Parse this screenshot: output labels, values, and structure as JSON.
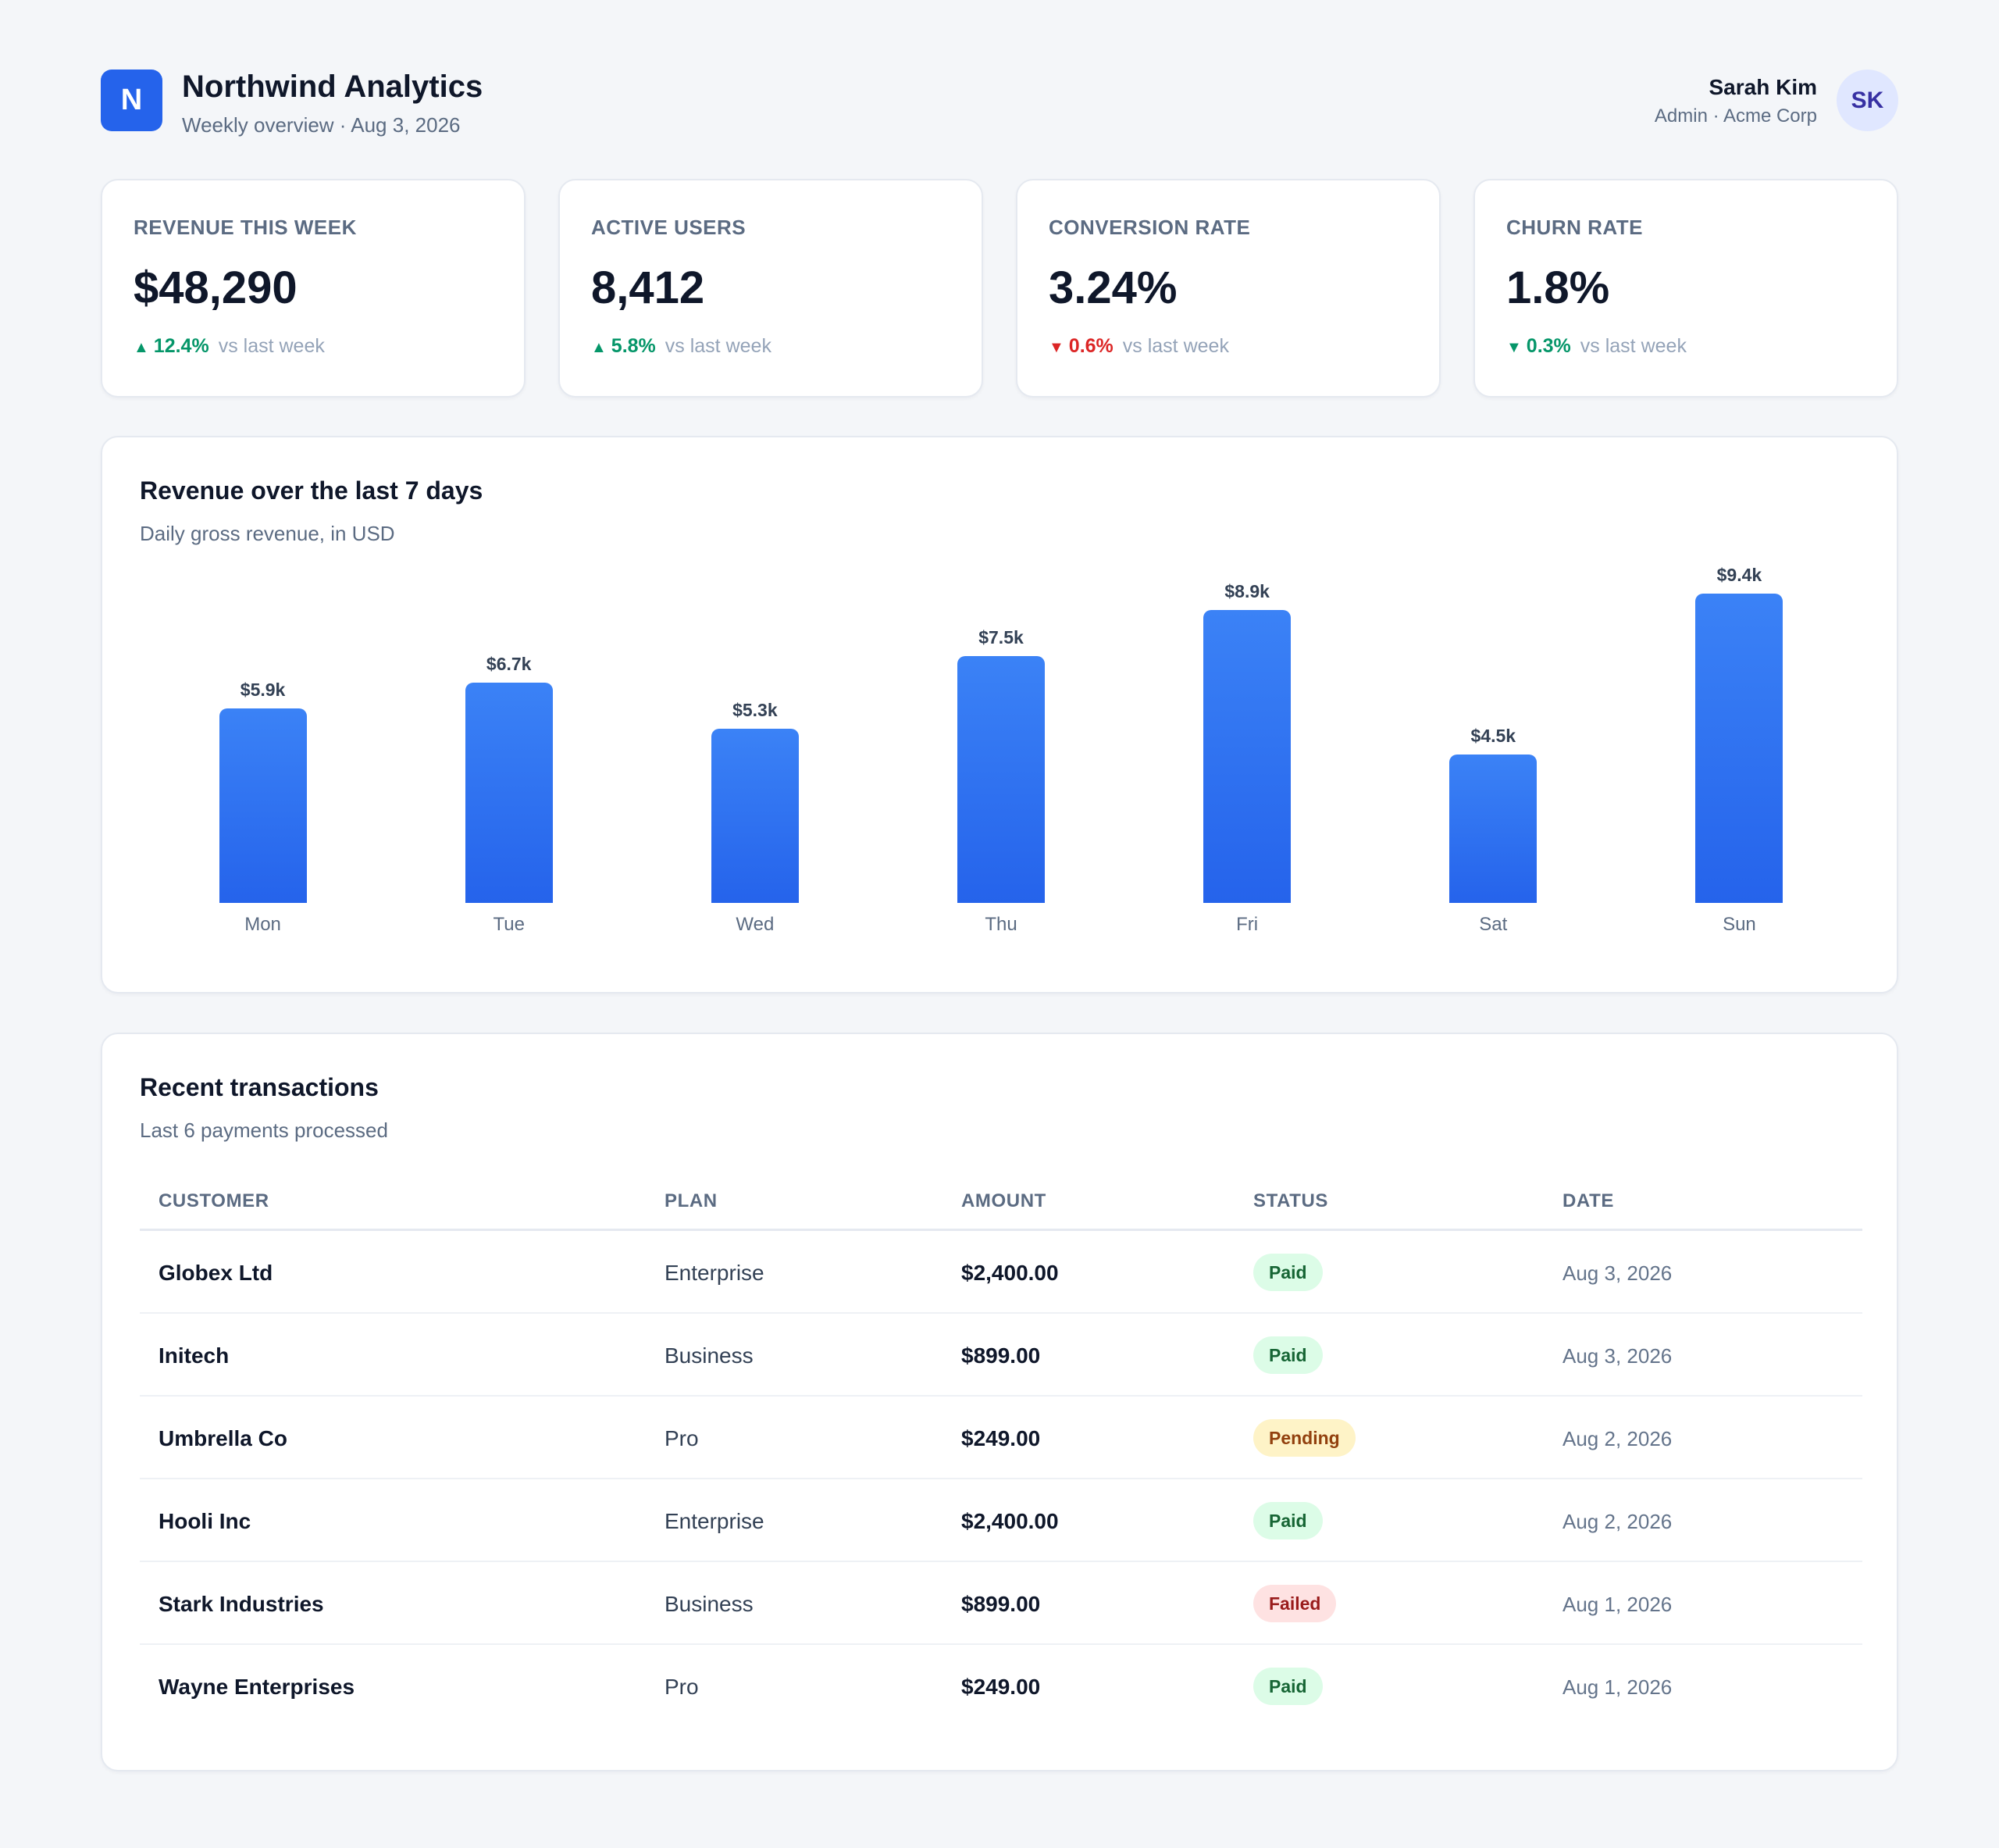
{
  "header": {
    "logo_letter": "N",
    "app_name": "Northwind Analytics",
    "subtitle": "Weekly overview · Aug 3, 2026",
    "user": {
      "name": "Sarah Kim",
      "role": "Admin · Acme Corp",
      "initials": "SK"
    }
  },
  "kpis": [
    {
      "label": "REVENUE THIS WEEK",
      "value": "$48,290",
      "delta": "12.4%",
      "direction": "up",
      "sentiment": "positive",
      "arrow": "▲",
      "note": "vs last week"
    },
    {
      "label": "ACTIVE USERS",
      "value": "8,412",
      "delta": "5.8%",
      "direction": "up",
      "sentiment": "positive",
      "arrow": "▲",
      "note": "vs last week"
    },
    {
      "label": "CONVERSION RATE",
      "value": "3.24%",
      "delta": "0.6%",
      "direction": "down",
      "sentiment": "negative",
      "arrow": "▼",
      "note": "vs last week"
    },
    {
      "label": "CHURN RATE",
      "value": "1.8%",
      "delta": "0.3%",
      "direction": "down",
      "sentiment": "positive",
      "arrow": "▼",
      "note": "vs last week"
    }
  ],
  "revenue_chart": {
    "title": "Revenue over the last 7 days",
    "subtitle": "Daily gross revenue, in USD"
  },
  "chart_data": {
    "type": "bar",
    "title": "Revenue over the last 7 days",
    "subtitle": "Daily gross revenue, in USD",
    "categories": [
      "Mon",
      "Tue",
      "Wed",
      "Thu",
      "Fri",
      "Sat",
      "Sun"
    ],
    "values": [
      5900,
      6700,
      5300,
      7500,
      8900,
      4500,
      9400
    ],
    "data_labels": [
      "$5.9k",
      "$6.7k",
      "$5.3k",
      "$7.5k",
      "$8.9k",
      "$4.5k",
      "$9.4k"
    ],
    "ylim": [
      0,
      9400
    ],
    "xlabel": "",
    "ylabel": "",
    "grid": false,
    "legend": "none",
    "bar_color": "#2563eb"
  },
  "transactions": {
    "title": "Recent transactions",
    "subtitle": "Last 6 payments processed",
    "columns": [
      "CUSTOMER",
      "PLAN",
      "AMOUNT",
      "STATUS",
      "DATE"
    ],
    "rows": [
      {
        "customer": "Globex Ltd",
        "plan": "Enterprise",
        "amount": "$2,400.00",
        "status": "Paid",
        "date": "Aug 3, 2026"
      },
      {
        "customer": "Initech",
        "plan": "Business",
        "amount": "$899.00",
        "status": "Paid",
        "date": "Aug 3, 2026"
      },
      {
        "customer": "Umbrella Co",
        "plan": "Pro",
        "amount": "$249.00",
        "status": "Pending",
        "date": "Aug 2, 2026"
      },
      {
        "customer": "Hooli Inc",
        "plan": "Enterprise",
        "amount": "$2,400.00",
        "status": "Paid",
        "date": "Aug 2, 2026"
      },
      {
        "customer": "Stark Industries",
        "plan": "Business",
        "amount": "$899.00",
        "status": "Failed",
        "date": "Aug 1, 2026"
      },
      {
        "customer": "Wayne Enterprises",
        "plan": "Pro",
        "amount": "$249.00",
        "status": "Paid",
        "date": "Aug 1, 2026"
      }
    ]
  },
  "colors": {
    "accent": "#2563eb",
    "positive": "#059669",
    "negative": "#dc2626",
    "status_paid_bg": "#dcfce7",
    "status_pending_bg": "#fef3c7",
    "status_failed_bg": "#fee2e2"
  }
}
